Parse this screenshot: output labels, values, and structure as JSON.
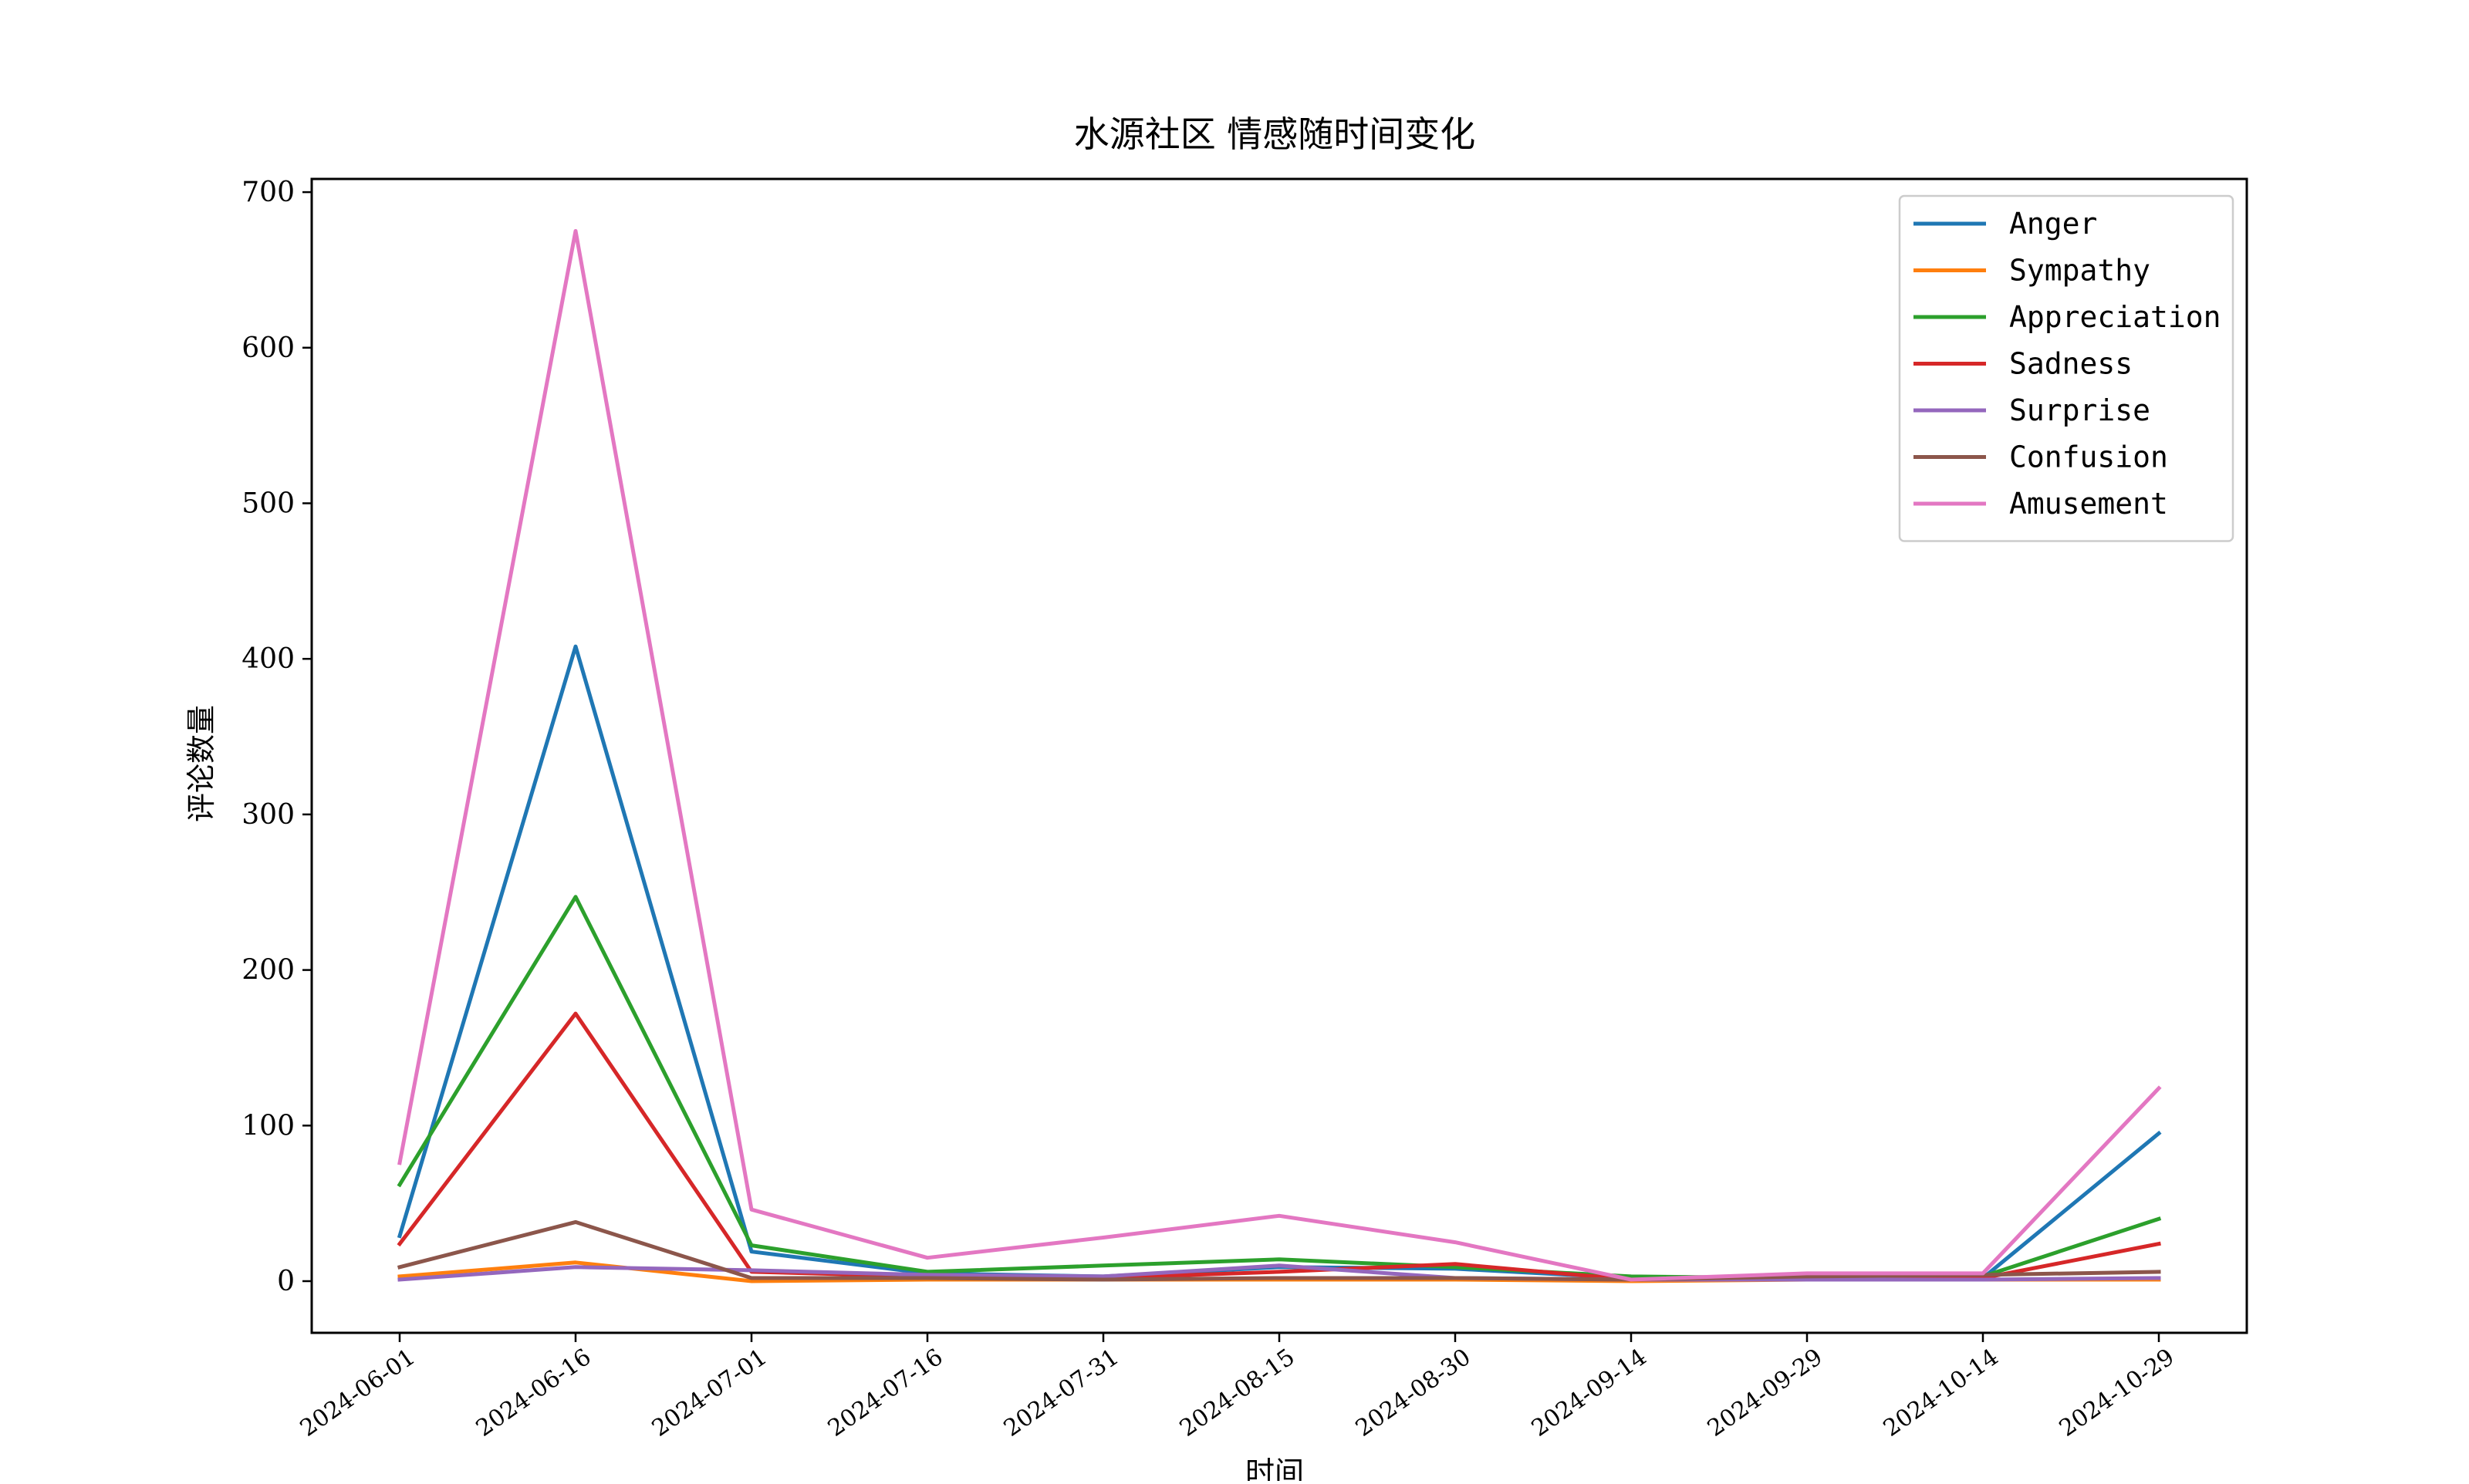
{
  "chart_data": {
    "type": "line",
    "title": "水源社区 情感随时间变化",
    "xlabel": "时间",
    "ylabel": "评论数量",
    "x": [
      "2024-06-01",
      "2024-06-16",
      "2024-07-01",
      "2024-07-16",
      "2024-07-31",
      "2024-08-15",
      "2024-08-30",
      "2024-09-14",
      "2024-09-29",
      "2024-10-14",
      "2024-10-29"
    ],
    "ylim": [
      -33,
      710
    ],
    "yticks": [
      0,
      100,
      200,
      300,
      400,
      500,
      600,
      700
    ],
    "grid": false,
    "legend_position": "top-right",
    "series": [
      {
        "name": "Anger",
        "color": "#1f77b4",
        "values": [
          29,
          408,
          19,
          5,
          3,
          9,
          8,
          2,
          1,
          2,
          95
        ]
      },
      {
        "name": "Sympathy",
        "color": "#ff7f0e",
        "values": [
          3,
          12,
          0,
          1,
          1,
          1,
          1,
          0,
          1,
          1,
          1
        ]
      },
      {
        "name": "Appreciation",
        "color": "#2ca02c",
        "values": [
          62,
          247,
          23,
          6,
          10,
          14,
          9,
          3,
          2,
          3,
          40
        ]
      },
      {
        "name": "Sadness",
        "color": "#d62728",
        "values": [
          24,
          172,
          6,
          3,
          2,
          6,
          11,
          1,
          1,
          2,
          24
        ]
      },
      {
        "name": "Surprise",
        "color": "#9467bd",
        "values": [
          1,
          9,
          7,
          4,
          3,
          10,
          2,
          1,
          1,
          1,
          2
        ]
      },
      {
        "name": "Confusion",
        "color": "#8c564b",
        "values": [
          9,
          38,
          2,
          2,
          1,
          2,
          2,
          1,
          3,
          4,
          6
        ]
      },
      {
        "name": "Amusement",
        "color": "#e377c2",
        "values": [
          76,
          675,
          46,
          15,
          28,
          42,
          25,
          1,
          5,
          5,
          124
        ]
      }
    ]
  }
}
